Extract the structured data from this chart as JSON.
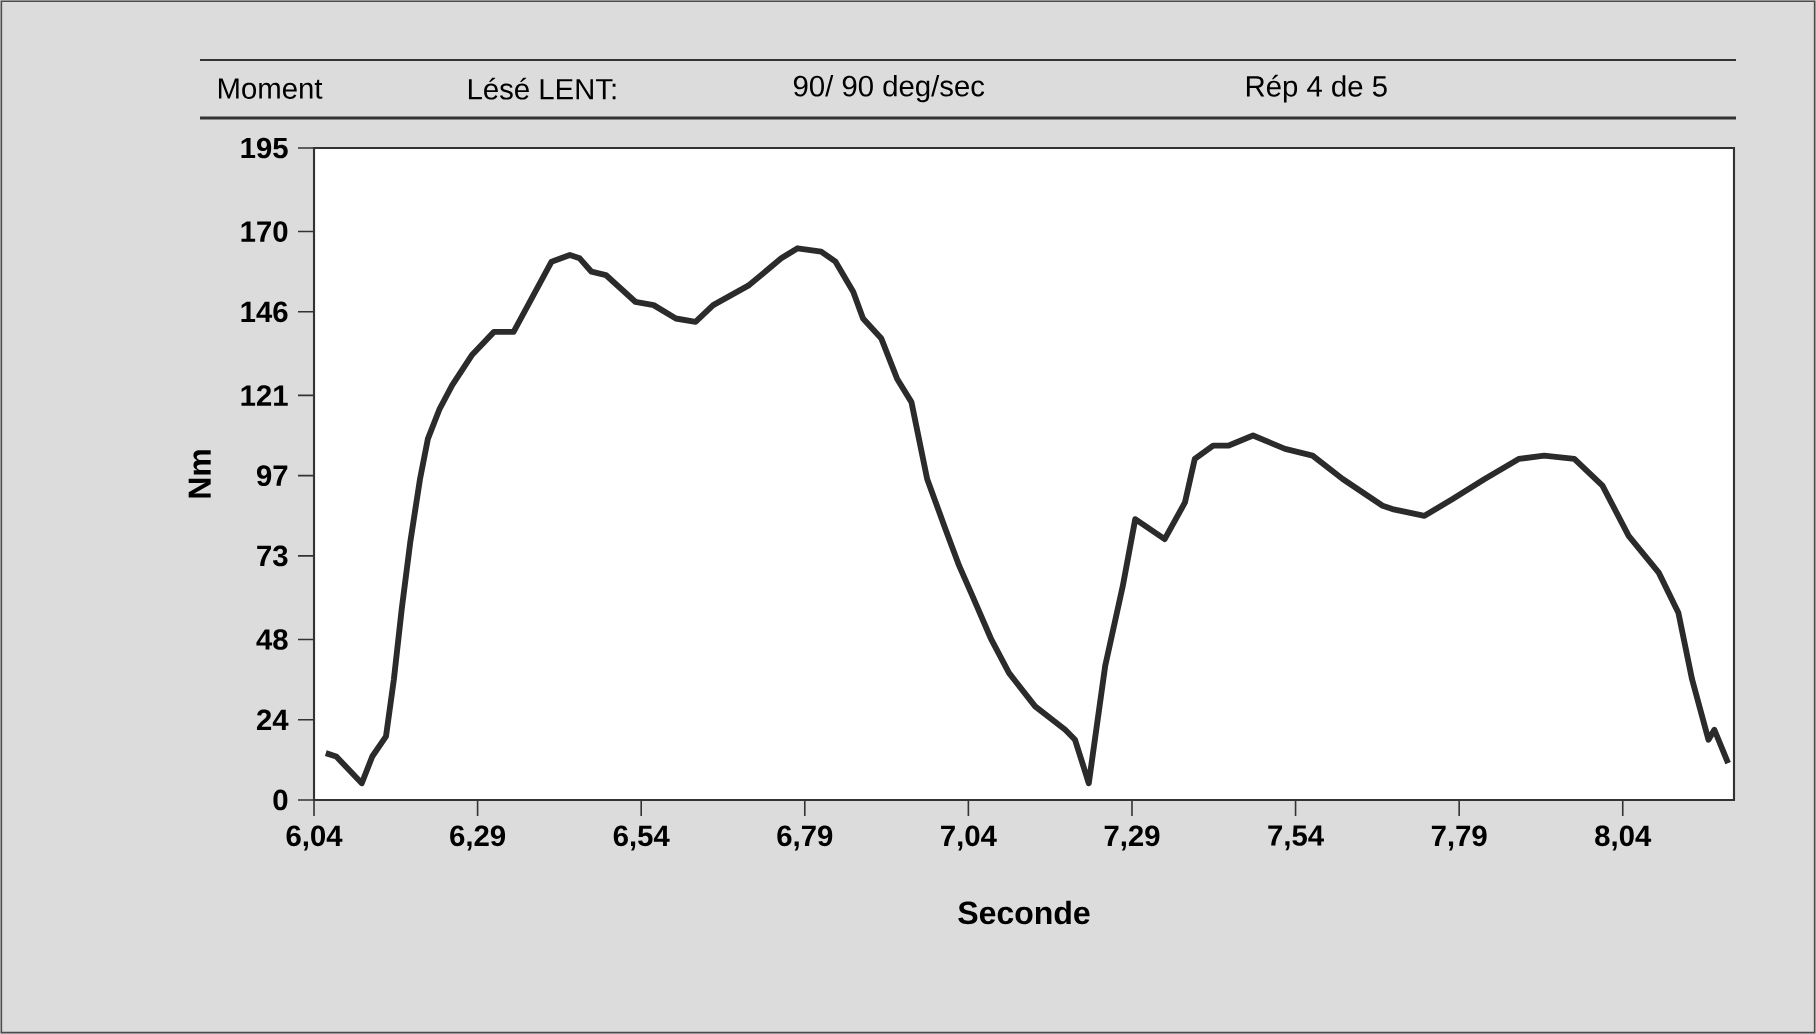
{
  "chart_data": {
    "type": "line",
    "xlabel": "Seconde",
    "ylabel": "Nm",
    "annotations": [
      "Moment",
      "Lésé LENT:",
      "90/ 90 deg/sec",
      "Rép 4 de 5"
    ],
    "xlim": [
      6.04,
      8.21
    ],
    "ylim": [
      0,
      195
    ],
    "xticks": [
      {
        "value": 6.04,
        "label": "6,04"
      },
      {
        "value": 6.29,
        "label": "6,29"
      },
      {
        "value": 6.54,
        "label": "6,54"
      },
      {
        "value": 6.79,
        "label": "6,79"
      },
      {
        "value": 7.04,
        "label": "7,04"
      },
      {
        "value": 7.29,
        "label": "7,29"
      },
      {
        "value": 7.54,
        "label": "7,54"
      },
      {
        "value": 7.79,
        "label": "7,79"
      },
      {
        "value": 8.04,
        "label": "8,04"
      }
    ],
    "yticks": [
      0,
      24,
      48,
      73,
      97,
      121,
      146,
      170,
      195
    ],
    "grid": false,
    "line_style": "solid",
    "series": [
      {
        "color": "#2b2b2b",
        "x": [
          6.058,
          6.074,
          6.113,
          6.129,
          6.15,
          6.162,
          6.174,
          6.187,
          6.202,
          6.214,
          6.232,
          6.251,
          6.281,
          6.315,
          6.345,
          6.403,
          6.431,
          6.446,
          6.464,
          6.486,
          6.531,
          6.559,
          6.593,
          6.623,
          6.65,
          6.705,
          6.754,
          6.779,
          6.815,
          6.837,
          6.864,
          6.879,
          6.907,
          6.931,
          6.953,
          6.977,
          7.005,
          7.026,
          7.044,
          7.075,
          7.102,
          7.142,
          7.188,
          7.203,
          7.224,
          7.249,
          7.276,
          7.295,
          7.34,
          7.371,
          7.386,
          7.414,
          7.438,
          7.475,
          7.524,
          7.566,
          7.612,
          7.673,
          7.688,
          7.737,
          7.78,
          7.829,
          7.881,
          7.92,
          7.966,
          8.009,
          8.049,
          8.095,
          8.125,
          8.146,
          8.171,
          8.18,
          8.201
        ],
        "values": [
          14,
          13,
          5,
          13,
          19,
          36,
          57,
          77,
          96,
          108,
          117,
          124,
          133,
          140,
          140,
          161,
          163,
          162,
          158,
          157,
          149,
          148,
          144,
          143,
          148,
          154,
          162,
          165,
          164,
          161,
          152,
          144,
          138,
          126,
          119,
          96,
          81,
          70,
          62,
          48,
          38,
          28,
          21,
          18,
          5,
          40,
          64,
          84,
          78,
          89,
          102,
          106,
          106,
          109,
          105,
          103,
          96,
          88,
          87,
          85,
          90,
          96,
          102,
          103,
          102,
          94,
          79,
          68,
          56,
          36,
          18,
          21,
          11
        ]
      }
    ]
  }
}
